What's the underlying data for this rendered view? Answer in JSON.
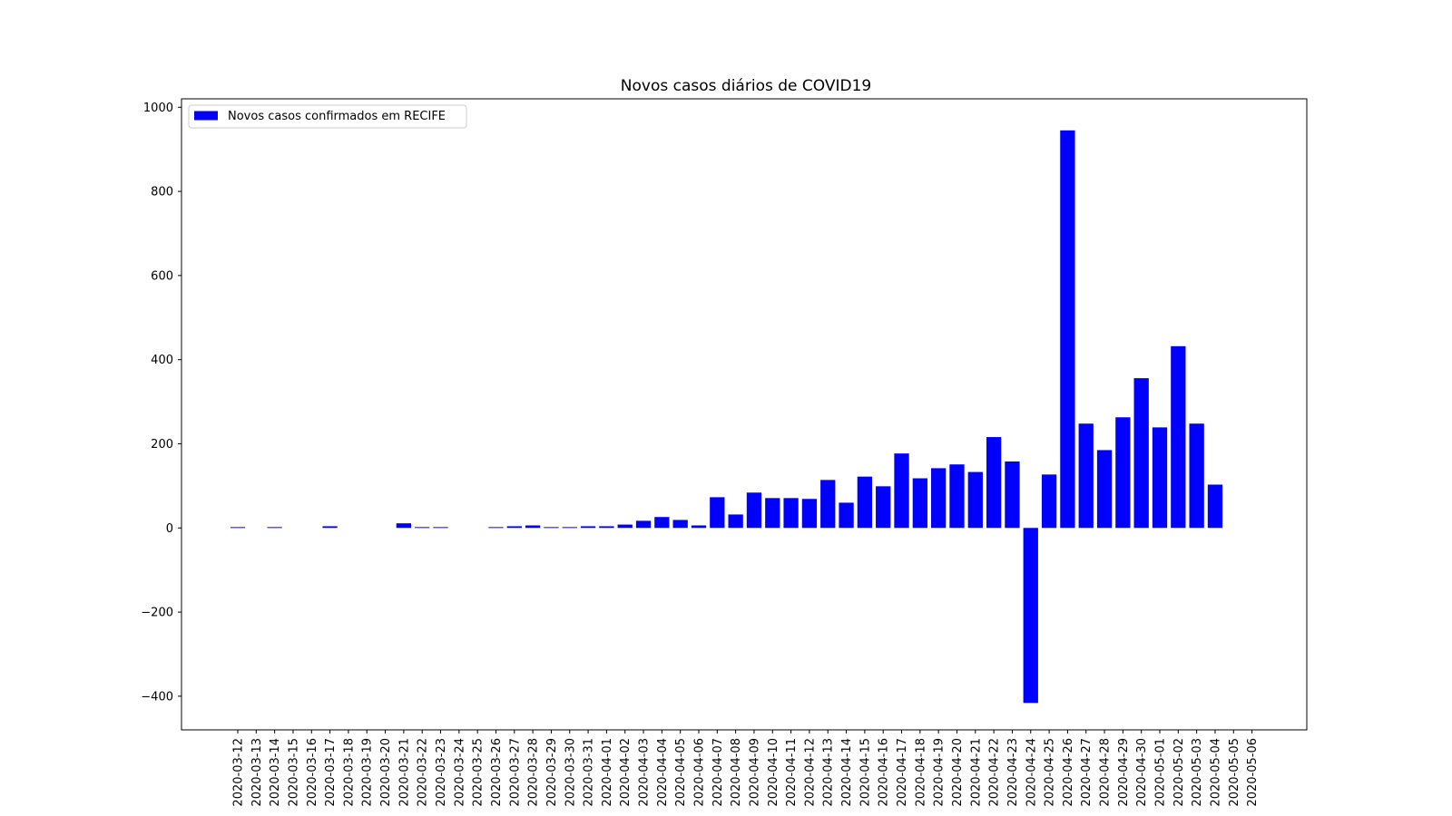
{
  "chart_data": {
    "type": "bar",
    "title": "Novos casos diários de COVID19",
    "xlabel": "",
    "ylabel": "",
    "ylim": [
      -480,
      1020
    ],
    "yticks": [
      -400,
      -200,
      0,
      200,
      400,
      600,
      800,
      1000
    ],
    "ytick_labels": [
      "−400",
      "−200",
      "0",
      "200",
      "400",
      "600",
      "800",
      "1000"
    ],
    "grid": false,
    "legend_position": "top-left",
    "bar_color": "#0000ff",
    "categories": [
      "2020-03-12",
      "2020-03-13",
      "2020-03-14",
      "2020-03-15",
      "2020-03-16",
      "2020-03-17",
      "2020-03-18",
      "2020-03-19",
      "2020-03-20",
      "2020-03-21",
      "2020-03-22",
      "2020-03-23",
      "2020-03-24",
      "2020-03-25",
      "2020-03-26",
      "2020-03-27",
      "2020-03-28",
      "2020-03-29",
      "2020-03-30",
      "2020-03-31",
      "2020-04-01",
      "2020-04-02",
      "2020-04-03",
      "2020-04-04",
      "2020-04-05",
      "2020-04-06",
      "2020-04-07",
      "2020-04-08",
      "2020-04-09",
      "2020-04-10",
      "2020-04-11",
      "2020-04-12",
      "2020-04-13",
      "2020-04-14",
      "2020-04-15",
      "2020-04-16",
      "2020-04-17",
      "2020-04-18",
      "2020-04-19",
      "2020-04-20",
      "2020-04-21",
      "2020-04-22",
      "2020-04-23",
      "2020-04-24",
      "2020-04-25",
      "2020-04-26",
      "2020-04-27",
      "2020-04-28",
      "2020-04-29",
      "2020-04-30",
      "2020-05-01",
      "2020-05-02",
      "2020-05-03",
      "2020-05-04",
      "2020-05-05",
      "2020-05-06"
    ],
    "series": [
      {
        "name": "Novos casos confirmados em RECIFE",
        "values": [
          2,
          0,
          2,
          0,
          0,
          4,
          0,
          0,
          0,
          11,
          2,
          2,
          0,
          0,
          2,
          4,
          6,
          2,
          2,
          4,
          4,
          8,
          17,
          26,
          19,
          6,
          73,
          32,
          84,
          71,
          71,
          69,
          114,
          60,
          122,
          99,
          177,
          118,
          142,
          151,
          133,
          216,
          158,
          -416,
          127,
          945,
          248,
          185,
          263,
          356,
          239,
          432,
          248,
          103,
          0,
          0
        ]
      }
    ]
  }
}
